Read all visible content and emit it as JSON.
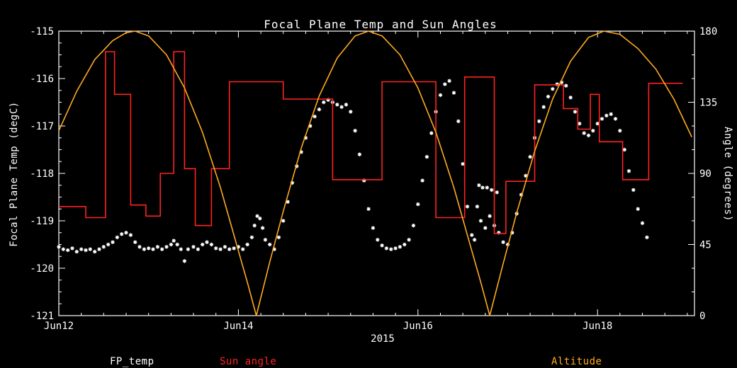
{
  "colors": {
    "background": "#000000",
    "axis": "#ffffff",
    "fp_temp": "#ffffff",
    "sun_angle": "#ff2222",
    "altitude": "#ffaa22"
  },
  "legend": [
    {
      "label": "FP_temp",
      "color": "#ffffff"
    },
    {
      "label": "Sun angle",
      "color": "#ff2222"
    },
    {
      "label": "Altitude",
      "color": "#ffaa22"
    }
  ],
  "chart_data": {
    "type": "line",
    "title": "Focal Plane Temp and Sun Angles",
    "background": "black",
    "grid": false,
    "legend_position": "bottom-text-only",
    "x_axis": {
      "year": "2015",
      "range": [
        0,
        7.08
      ],
      "unit": "days-from-Jun12",
      "minor_step": 0.25,
      "ticks": [
        {
          "v": 0,
          "label": "Jun12"
        },
        {
          "v": 2,
          "label": "Jun14"
        },
        {
          "v": 4,
          "label": "Jun16"
        },
        {
          "v": 6,
          "label": "Jun18"
        }
      ]
    },
    "y_left": {
      "label": "Focal Plane Temp (degC)",
      "range": [
        -121,
        -115
      ],
      "minor_step": 0.25,
      "ticks": [
        {
          "v": -115,
          "label": "-115"
        },
        {
          "v": -116,
          "label": "-116"
        },
        {
          "v": -117,
          "label": "-117"
        },
        {
          "v": -118,
          "label": "-118"
        },
        {
          "v": -119,
          "label": "-119"
        },
        {
          "v": -120,
          "label": "-120"
        },
        {
          "v": -121,
          "label": "-121"
        }
      ]
    },
    "y_right": {
      "label": "Angle (degrees)",
      "range": [
        0,
        180
      ],
      "minor_step": 15,
      "ticks": [
        {
          "v": 0,
          "label": "0"
        },
        {
          "v": 45,
          "label": "45"
        },
        {
          "v": 90,
          "label": "90"
        },
        {
          "v": 135,
          "label": "135"
        },
        {
          "v": 180,
          "label": "180"
        }
      ]
    },
    "series": [
      {
        "name": "FP_temp",
        "axis": "left",
        "style": "scatter",
        "color": "#ffffff",
        "points": [
          [
            0,
            -119.55
          ],
          [
            0.05,
            -119.6
          ],
          [
            0.1,
            -119.62
          ],
          [
            0.15,
            -119.58
          ],
          [
            0.2,
            -119.65
          ],
          [
            0.25,
            -119.6
          ],
          [
            0.3,
            -119.62
          ],
          [
            0.35,
            -119.6
          ],
          [
            0.4,
            -119.65
          ],
          [
            0.45,
            -119.6
          ],
          [
            0.5,
            -119.55
          ],
          [
            0.55,
            -119.5
          ],
          [
            0.6,
            -119.45
          ],
          [
            0.65,
            -119.35
          ],
          [
            0.7,
            -119.28
          ],
          [
            0.75,
            -119.25
          ],
          [
            0.8,
            -119.3
          ],
          [
            0.85,
            -119.45
          ],
          [
            0.9,
            -119.55
          ],
          [
            0.95,
            -119.6
          ],
          [
            1,
            -119.58
          ],
          [
            1.05,
            -119.6
          ],
          [
            1.1,
            -119.55
          ],
          [
            1.15,
            -119.6
          ],
          [
            1.2,
            -119.55
          ],
          [
            1.25,
            -119.5
          ],
          [
            1.28,
            -119.42
          ],
          [
            1.32,
            -119.5
          ],
          [
            1.36,
            -119.6
          ],
          [
            1.4,
            -119.85
          ],
          [
            1.44,
            -119.6
          ],
          [
            1.5,
            -119.55
          ],
          [
            1.55,
            -119.6
          ],
          [
            1.6,
            -119.5
          ],
          [
            1.65,
            -119.45
          ],
          [
            1.7,
            -119.5
          ],
          [
            1.75,
            -119.58
          ],
          [
            1.8,
            -119.6
          ],
          [
            1.85,
            -119.55
          ],
          [
            1.9,
            -119.6
          ],
          [
            1.95,
            -119.58
          ],
          [
            2,
            -119.55
          ],
          [
            2.05,
            -119.6
          ],
          [
            2.1,
            -119.5
          ],
          [
            2.15,
            -119.35
          ],
          [
            2.18,
            -119.1
          ],
          [
            2.21,
            -118.9
          ],
          [
            2.24,
            -118.95
          ],
          [
            2.27,
            -119.15
          ],
          [
            2.3,
            -119.4
          ],
          [
            2.35,
            -119.5
          ],
          [
            2.4,
            -119.6
          ],
          [
            2.45,
            -119.35
          ],
          [
            2.5,
            -119
          ],
          [
            2.55,
            -118.6
          ],
          [
            2.6,
            -118.2
          ],
          [
            2.65,
            -117.85
          ],
          [
            2.7,
            -117.55
          ],
          [
            2.75,
            -117.25
          ],
          [
            2.8,
            -117
          ],
          [
            2.85,
            -116.8
          ],
          [
            2.9,
            -116.65
          ],
          [
            2.95,
            -116.5
          ],
          [
            3,
            -116.45
          ],
          [
            3.05,
            -116.5
          ],
          [
            3.1,
            -116.55
          ],
          [
            3.15,
            -116.6
          ],
          [
            3.2,
            -116.55
          ],
          [
            3.25,
            -116.7
          ],
          [
            3.3,
            -117.1
          ],
          [
            3.35,
            -117.6
          ],
          [
            3.4,
            -118.15
          ],
          [
            3.45,
            -118.75
          ],
          [
            3.5,
            -119.15
          ],
          [
            3.55,
            -119.4
          ],
          [
            3.6,
            -119.52
          ],
          [
            3.65,
            -119.58
          ],
          [
            3.7,
            -119.6
          ],
          [
            3.75,
            -119.58
          ],
          [
            3.8,
            -119.55
          ],
          [
            3.85,
            -119.5
          ],
          [
            3.9,
            -119.4
          ],
          [
            3.95,
            -119.1
          ],
          [
            4,
            -118.65
          ],
          [
            4.05,
            -118.15
          ],
          [
            4.1,
            -117.65
          ],
          [
            4.15,
            -117.15
          ],
          [
            4.2,
            -116.7
          ],
          [
            4.25,
            -116.35
          ],
          [
            4.3,
            -116.12
          ],
          [
            4.35,
            -116.05
          ],
          [
            4.4,
            -116.3
          ],
          [
            4.45,
            -116.9
          ],
          [
            4.5,
            -117.8
          ],
          [
            4.55,
            -118.7
          ],
          [
            4.6,
            -119.3
          ],
          [
            4.63,
            -119.4
          ],
          [
            4.66,
            -118.7
          ],
          [
            4.68,
            -118.25
          ],
          [
            4.7,
            -119
          ],
          [
            4.72,
            -118.3
          ],
          [
            4.75,
            -119.15
          ],
          [
            4.77,
            -118.3
          ],
          [
            4.8,
            -118.9
          ],
          [
            4.82,
            -118.35
          ],
          [
            4.85,
            -119.1
          ],
          [
            4.88,
            -118.4
          ],
          [
            4.9,
            -119.25
          ],
          [
            4.95,
            -119.45
          ],
          [
            5,
            -119.5
          ],
          [
            5.05,
            -119.25
          ],
          [
            5.1,
            -118.85
          ],
          [
            5.15,
            -118.45
          ],
          [
            5.2,
            -118.05
          ],
          [
            5.25,
            -117.65
          ],
          [
            5.3,
            -117.25
          ],
          [
            5.35,
            -116.9
          ],
          [
            5.4,
            -116.6
          ],
          [
            5.45,
            -116.38
          ],
          [
            5.5,
            -116.22
          ],
          [
            5.55,
            -116.12
          ],
          [
            5.6,
            -116.08
          ],
          [
            5.65,
            -116.15
          ],
          [
            5.7,
            -116.4
          ],
          [
            5.75,
            -116.7
          ],
          [
            5.8,
            -116.95
          ],
          [
            5.85,
            -117.15
          ],
          [
            5.9,
            -117.2
          ],
          [
            5.95,
            -117.1
          ],
          [
            6,
            -116.95
          ],
          [
            6.05,
            -116.85
          ],
          [
            6.1,
            -116.78
          ],
          [
            6.15,
            -116.75
          ],
          [
            6.2,
            -116.85
          ],
          [
            6.25,
            -117.1
          ],
          [
            6.3,
            -117.5
          ],
          [
            6.35,
            -117.95
          ],
          [
            6.4,
            -118.35
          ],
          [
            6.45,
            -118.75
          ],
          [
            6.5,
            -119.05
          ],
          [
            6.55,
            -119.35
          ]
        ]
      },
      {
        "name": "Sun angle",
        "axis": "right",
        "style": "step",
        "color": "#ff2222",
        "points": [
          [
            0,
            69
          ],
          [
            0.3,
            62
          ],
          [
            0.52,
            167
          ],
          [
            0.62,
            140
          ],
          [
            0.8,
            70
          ],
          [
            0.97,
            63
          ],
          [
            1.13,
            90
          ],
          [
            1.28,
            167
          ],
          [
            1.4,
            93
          ],
          [
            1.52,
            57
          ],
          [
            1.7,
            93
          ],
          [
            1.9,
            148
          ],
          [
            2.5,
            137
          ],
          [
            3.05,
            86
          ],
          [
            3.6,
            148
          ],
          [
            4.2,
            62
          ],
          [
            4.52,
            151
          ],
          [
            4.85,
            52
          ],
          [
            4.98,
            85
          ],
          [
            5.3,
            146
          ],
          [
            5.62,
            131
          ],
          [
            5.78,
            118
          ],
          [
            5.92,
            140
          ],
          [
            6.02,
            110
          ],
          [
            6.28,
            86
          ],
          [
            6.57,
            147
          ],
          [
            6.95,
            147
          ]
        ]
      },
      {
        "name": "Altitude",
        "axis": "right",
        "style": "line",
        "color": "#ffaa22",
        "points": [
          [
            0,
            117
          ],
          [
            0.2,
            142
          ],
          [
            0.4,
            162
          ],
          [
            0.6,
            174
          ],
          [
            0.75,
            179
          ],
          [
            0.85,
            180
          ],
          [
            1,
            177
          ],
          [
            1.2,
            165
          ],
          [
            1.4,
            144
          ],
          [
            1.6,
            116
          ],
          [
            1.8,
            81
          ],
          [
            2,
            41
          ],
          [
            2.1,
            21
          ],
          [
            2.2,
            0
          ],
          [
            2.35,
            34
          ],
          [
            2.5,
            66
          ],
          [
            2.7,
            106
          ],
          [
            2.9,
            139
          ],
          [
            3.1,
            163
          ],
          [
            3.3,
            177
          ],
          [
            3.45,
            180
          ],
          [
            3.6,
            177
          ],
          [
            3.8,
            165
          ],
          [
            4,
            144
          ],
          [
            4.2,
            116
          ],
          [
            4.4,
            81
          ],
          [
            4.6,
            41
          ],
          [
            4.7,
            21
          ],
          [
            4.8,
            0
          ],
          [
            4.95,
            33
          ],
          [
            5.1,
            65
          ],
          [
            5.3,
            104
          ],
          [
            5.5,
            137
          ],
          [
            5.7,
            161
          ],
          [
            5.9,
            176
          ],
          [
            6.07,
            180
          ],
          [
            6.25,
            178
          ],
          [
            6.45,
            169
          ],
          [
            6.65,
            156
          ],
          [
            6.85,
            137
          ],
          [
            7.05,
            113
          ]
        ]
      }
    ]
  }
}
